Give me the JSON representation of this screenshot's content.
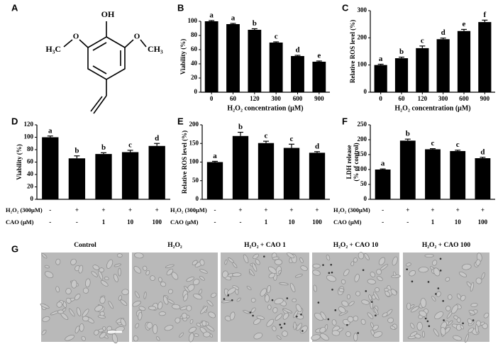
{
  "structure": {
    "panel": "A",
    "labels": [
      "OH",
      "O",
      "O",
      "H₃C",
      "CH₃"
    ]
  },
  "chart_data": [
    {
      "type": "bar",
      "panel": "B",
      "ylabel": "Viability (%)",
      "xlabel": "H₂O₂ concentration (μM)",
      "categories": [
        "0",
        "60",
        "120",
        "300",
        "600",
        "900"
      ],
      "values": [
        100,
        96,
        88,
        70,
        51,
        43
      ],
      "errors": [
        1,
        1,
        1.5,
        1,
        1,
        1
      ],
      "annotations": [
        "a",
        "a",
        "b",
        "c",
        "d",
        "e"
      ],
      "ylim": [
        0,
        100
      ],
      "yticks": [
        0,
        20,
        40,
        60,
        80,
        100
      ],
      "color": "#000000"
    },
    {
      "type": "bar",
      "panel": "C",
      "ylabel": "Relative ROS level (%)",
      "xlabel": "H₂O₂ concentration (μM)",
      "categories": [
        "0",
        "60",
        "120",
        "300",
        "600",
        "900"
      ],
      "values": [
        100,
        125,
        162,
        195,
        225,
        258
      ],
      "errors": [
        3,
        4,
        8,
        4,
        6,
        7
      ],
      "annotations": [
        "a",
        "b",
        "c",
        "d",
        "e",
        "f"
      ],
      "ylim": [
        0,
        300
      ],
      "yticks": [
        0,
        100,
        200,
        300
      ],
      "color": "#000000"
    },
    {
      "type": "bar",
      "panel": "D",
      "ylabel": "Viability (%)",
      "treatment_rows": [
        {
          "name": "H₂O₂ (300μM)",
          "labels": [
            "-",
            "+",
            "+",
            "+",
            "+"
          ]
        },
        {
          "name": "CAO (μM)",
          "labels": [
            "-",
            "-",
            "1",
            "10",
            "100"
          ]
        }
      ],
      "values": [
        100,
        66,
        73,
        76,
        86
      ],
      "errors": [
        2,
        4,
        2,
        3,
        4
      ],
      "annotations": [
        "a",
        "b",
        "b",
        "c",
        "d"
      ],
      "ylim": [
        0,
        120
      ],
      "yticks": [
        0,
        20,
        40,
        60,
        80,
        100,
        120
      ],
      "color": "#000000"
    },
    {
      "type": "bar",
      "panel": "E",
      "ylabel": "Relative ROS level (%)",
      "treatment_rows": [
        {
          "name": "H₂O₂ (300μM)",
          "labels": [
            "-",
            "+",
            "+",
            "+",
            "+"
          ]
        },
        {
          "name": "CAO (μM)",
          "labels": [
            "-",
            "-",
            "1",
            "10",
            "100"
          ]
        }
      ],
      "values": [
        100,
        170,
        151,
        138,
        125
      ],
      "errors": [
        2,
        10,
        5,
        10,
        3
      ],
      "annotations": [
        "a",
        "b",
        "c",
        "c",
        "d"
      ],
      "ylim": [
        0,
        200
      ],
      "yticks": [
        0,
        50,
        100,
        150,
        200
      ],
      "color": "#000000"
    },
    {
      "type": "bar",
      "panel": "F",
      "ylabel": "LDH release\n(% of control)",
      "treatment_rows": [
        {
          "name": "H₂O₂ (300μM)",
          "labels": [
            "-",
            "+",
            "+",
            "+",
            "+"
          ]
        },
        {
          "name": "CAO (μM)",
          "labels": [
            "-",
            "-",
            "1",
            "10",
            "100"
          ]
        }
      ],
      "values": [
        100,
        197,
        168,
        162,
        138
      ],
      "errors": [
        2,
        5,
        2,
        3,
        3
      ],
      "annotations": [
        "a",
        "b",
        "c",
        "c",
        "d"
      ],
      "ylim": [
        0,
        250
      ],
      "yticks": [
        0,
        50,
        100,
        150,
        200,
        250
      ],
      "color": "#000000"
    }
  ],
  "images": {
    "panel": "G",
    "labels": [
      "Control",
      "H₂O₂",
      "H₂O₂ + CAO 1",
      "H₂O₂ + CAO 10",
      "H₂O₂ + CAO 100"
    ]
  }
}
